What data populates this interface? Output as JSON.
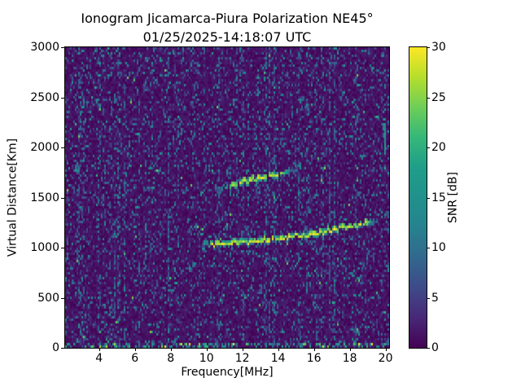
{
  "chart_data": {
    "type": "heatmap",
    "title": "Ionogram Jicamarca-Piura Polarization NE45°",
    "subtitle": "01/25/2025-14:18:07 UTC",
    "xlabel": "Frequency[MHz]",
    "ylabel": "Virtual Distance[Km]",
    "colorbar_label": "SNR [dB]",
    "colormap": "viridis",
    "xlim": [
      2.1,
      20.2
    ],
    "ylim": [
      0,
      3000
    ],
    "snr_range_db": [
      0,
      30
    ],
    "xticks": [
      4,
      6,
      8,
      10,
      12,
      14,
      16,
      18,
      20
    ],
    "yticks": [
      0,
      500,
      1000,
      1500,
      2000,
      2500,
      3000
    ],
    "colorbar_ticks": [
      0,
      5,
      10,
      15,
      20,
      25,
      30
    ],
    "grid": false,
    "legend": "none",
    "background_noise": {
      "floor_db": 0,
      "speckle_db": [
        4,
        16
      ],
      "description": "sparse random speckle noise with frequency-dependent (column) RFI density, denser interference along 0 km bottom row"
    },
    "traces": [
      {
        "name": "F-region echo first hop",
        "peak_snr_db": 30,
        "fade": 0.07,
        "density": 0.98,
        "points_mhz_km": [
          [
            9.7,
            1015
          ],
          [
            10.3,
            1030
          ],
          [
            11.2,
            1040
          ],
          [
            12.1,
            1050
          ],
          [
            13.0,
            1062
          ],
          [
            13.9,
            1082
          ],
          [
            14.8,
            1105
          ],
          [
            15.7,
            1128
          ],
          [
            16.7,
            1160
          ],
          [
            17.6,
            1192
          ],
          [
            18.5,
            1225
          ],
          [
            19.1,
            1250
          ],
          [
            19.55,
            1268
          ]
        ]
      },
      {
        "name": "second hop echo",
        "peak_snr_db": 30,
        "fade": 0.25,
        "density": 0.9,
        "points_mhz_km": [
          [
            10.4,
            1570
          ],
          [
            11.2,
            1615
          ],
          [
            12.0,
            1650
          ],
          [
            12.8,
            1685
          ],
          [
            13.6,
            1715
          ],
          [
            14.4,
            1750
          ],
          [
            15.0,
            1785
          ]
        ]
      },
      {
        "name": "second hop faint extension",
        "peak_snr_db": 16,
        "fade": 0.3,
        "density": 0.4,
        "points_mhz_km": [
          [
            14.9,
            1775
          ],
          [
            15.5,
            1830
          ],
          [
            16.0,
            1900
          ]
        ]
      }
    ],
    "artifacts": {
      "vertical_streak": {
        "freq_mhz": 19.95,
        "range_km": [
          1950,
          2280
        ],
        "snr_db": 15
      },
      "bottom_row_interference_db": [
        8,
        30
      ]
    }
  }
}
